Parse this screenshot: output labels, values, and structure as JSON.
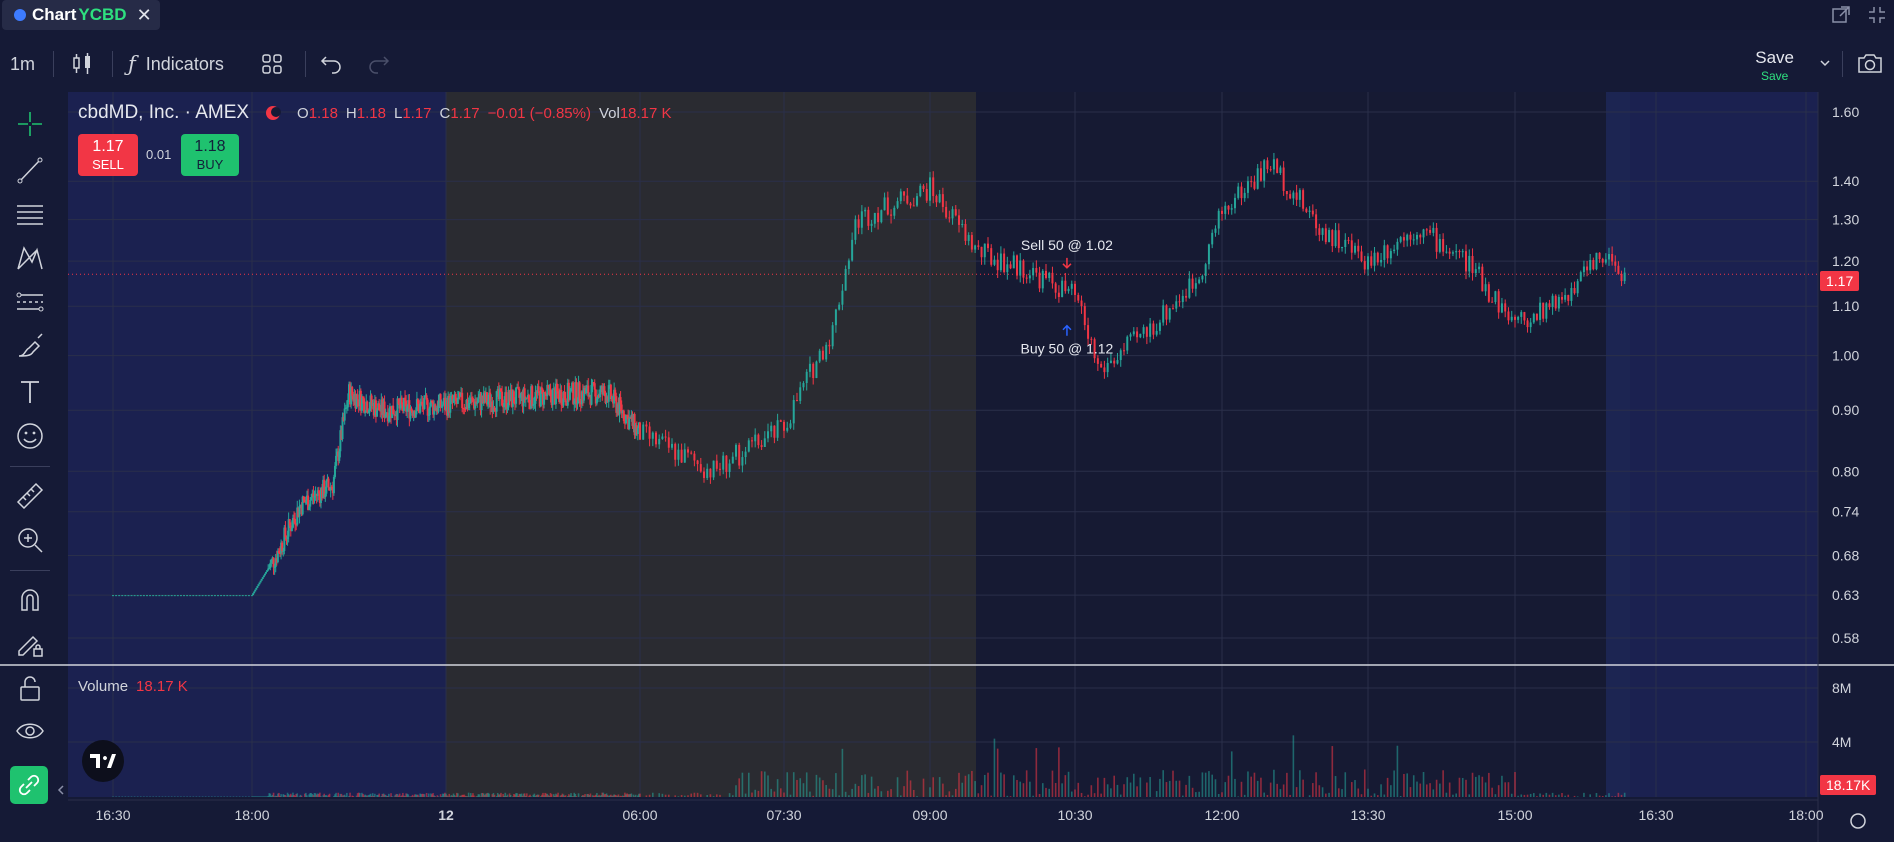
{
  "tab": {
    "label": "Chart",
    "symbol": "YCBD",
    "close": "✕"
  },
  "toolbar": {
    "interval": "1m",
    "indicators": "Indicators",
    "save": "Save",
    "save_status": "Save"
  },
  "legend": {
    "name": "cbdMD, Inc. · AMEX",
    "open_label": "O",
    "open": "1.18",
    "high_label": "H",
    "high": "1.18",
    "low_label": "L",
    "low": "1.17",
    "close_label": "C",
    "close": "1.17",
    "change": "−0.01 (−0.85%)",
    "vol_label": "Vol",
    "vol": "18.17 K"
  },
  "trade": {
    "sell_price": "1.17",
    "sell_label": "SELL",
    "spread": "0.01",
    "buy_price": "1.18",
    "buy_label": "BUY"
  },
  "volume_pane": {
    "label": "Volume",
    "value": "18.17 K"
  },
  "colors": {
    "up": "#26a69a",
    "down": "#f23645",
    "accent": "#1fc26f",
    "background": "#151a36",
    "extended_hours": "#2a2b31"
  },
  "chart_data": {
    "type": "candlestick",
    "title": "cbdMD, Inc. · AMEX",
    "interval": "1m",
    "scale": "log",
    "price_ticks": [
      "1.60",
      "1.40",
      "1.30",
      "1.20",
      "1.10",
      "1.00",
      "0.90",
      "0.80",
      "0.74",
      "0.68",
      "0.63",
      "0.58"
    ],
    "volume_ticks": [
      "8M",
      "4M"
    ],
    "time_ticks": [
      "16:30",
      "18:00",
      "12",
      "06:00",
      "07:30",
      "09:00",
      "10:30",
      "12:00",
      "13:30",
      "15:00",
      "16:30",
      "18:00"
    ],
    "last_price": "1.17",
    "last_volume": "18.17K",
    "price_path": [
      {
        "time": "16:30",
        "close": 0.63
      },
      {
        "time": "18:00",
        "close": 0.63
      },
      {
        "time": "18:45",
        "close": 0.68
      },
      {
        "time": "19:30",
        "close": 0.75
      },
      {
        "time": "20:30",
        "close": 0.78
      },
      {
        "time": "21:00",
        "close": 0.93
      },
      {
        "time": "22:00",
        "close": 0.9
      },
      {
        "time": "04:00",
        "close": 0.93
      },
      {
        "time": "05:00",
        "close": 0.93
      },
      {
        "time": "06:00",
        "close": 0.86
      },
      {
        "time": "06:45",
        "close": 0.8
      },
      {
        "time": "07:30",
        "close": 0.87
      },
      {
        "time": "08:00",
        "close": 1.05
      },
      {
        "time": "08:15",
        "close": 1.3
      },
      {
        "time": "09:00",
        "close": 1.38
      },
      {
        "time": "09:30",
        "close": 1.22
      },
      {
        "time": "10:00",
        "close": 1.18
      },
      {
        "time": "10:30",
        "close": 1.12
      },
      {
        "time": "10:45",
        "close": 0.97
      },
      {
        "time": "11:15",
        "close": 1.05
      },
      {
        "time": "11:45",
        "close": 1.16
      },
      {
        "time": "12:00",
        "close": 1.32
      },
      {
        "time": "12:30",
        "close": 1.45
      },
      {
        "time": "13:00",
        "close": 1.28
      },
      {
        "time": "13:30",
        "close": 1.2
      },
      {
        "time": "14:00",
        "close": 1.28
      },
      {
        "time": "14:30",
        "close": 1.2
      },
      {
        "time": "15:00",
        "close": 1.06
      },
      {
        "time": "15:30",
        "close": 1.12
      },
      {
        "time": "16:00",
        "close": 1.22
      },
      {
        "time": "16:10",
        "close": 1.17
      }
    ],
    "annotations": [
      {
        "text": "Sell 50 @ 1.02",
        "time": "10:25",
        "price": 1.18
      },
      {
        "text": "Buy 50 @ 1.12",
        "time": "10:25",
        "price": 1.08
      }
    ]
  }
}
